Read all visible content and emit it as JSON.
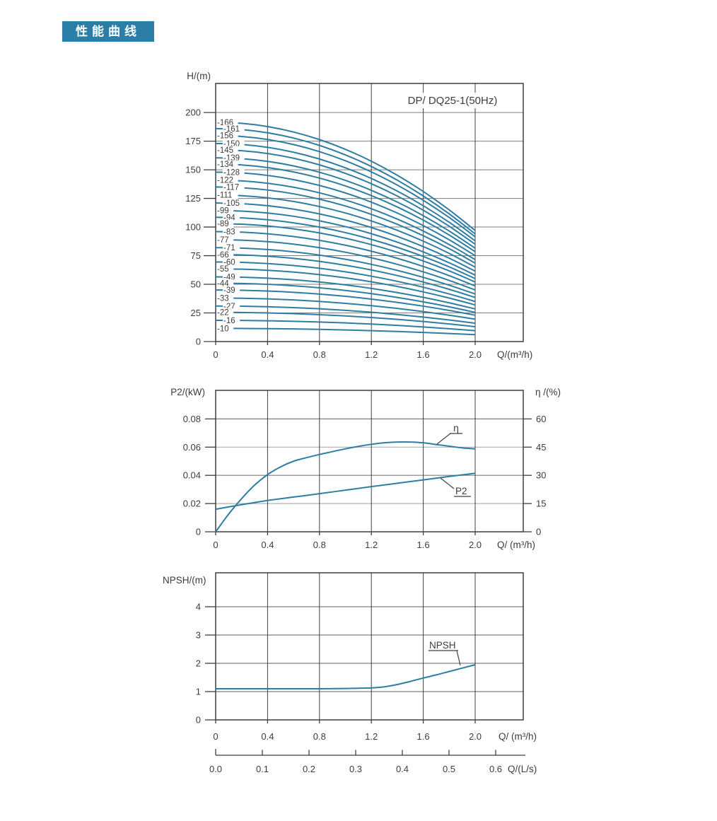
{
  "header": {
    "badge": "性能曲线"
  },
  "colors": {
    "accent": "#2b7ea8",
    "curve": "#2e7da2",
    "grid": "#7d7d7d",
    "grid_light": "#b0b0b0",
    "frame": "#3f3f3f",
    "text": "#3c3c3c"
  },
  "chart_data": [
    {
      "id": "head-flow",
      "type": "line",
      "title": "DP/ DQ25-1(50Hz)",
      "xlabel": "Q/(m³/h)",
      "ylabel": "H/(m)",
      "xticks": [
        0,
        0.4,
        0.8,
        1.2,
        1.6,
        2.0
      ],
      "xtick_labels": [
        "0",
        "0.4",
        "0.8",
        "1.2",
        "1.6",
        "2.0"
      ],
      "yticks": [
        0,
        25,
        50,
        75,
        100,
        125,
        150,
        175,
        200
      ],
      "xlim": [
        0,
        2.37
      ],
      "ylim": [
        0,
        225
      ],
      "model": "H(Q) = h0 - (h0 - h2)*(Q/2)^2, Q in m³/h, H in m",
      "series": [
        {
          "label": "-166",
          "h0": 191.5,
          "h2": 97
        },
        {
          "label": "-161",
          "h0": 186,
          "h2": 94
        },
        {
          "label": "-156",
          "h0": 180,
          "h2": 91.5
        },
        {
          "label": "-150",
          "h0": 173,
          "h2": 88
        },
        {
          "label": "-145",
          "h0": 167.5,
          "h2": 85
        },
        {
          "label": "-139",
          "h0": 160.5,
          "h2": 81.5
        },
        {
          "label": "-134",
          "h0": 155,
          "h2": 78.5
        },
        {
          "label": "-128",
          "h0": 148,
          "h2": 75
        },
        {
          "label": "-122",
          "h0": 141,
          "h2": 71.5
        },
        {
          "label": "-117",
          "h0": 135,
          "h2": 68.5
        },
        {
          "label": "-111",
          "h0": 128,
          "h2": 65
        },
        {
          "label": "-105",
          "h0": 121,
          "h2": 61.5
        },
        {
          "label": "-99",
          "h0": 114.5,
          "h2": 58
        },
        {
          "label": "-94",
          "h0": 108.5,
          "h2": 55
        },
        {
          "label": "-89",
          "h0": 103,
          "h2": 52
        },
        {
          "label": "-83",
          "h0": 96,
          "h2": 48.5
        },
        {
          "label": "-77",
          "h0": 89,
          "h2": 45
        },
        {
          "label": "-71",
          "h0": 82,
          "h2": 41.5
        },
        {
          "label": "-66",
          "h0": 76,
          "h2": 38.5
        },
        {
          "label": "-60",
          "h0": 69.5,
          "h2": 35
        },
        {
          "label": "-55",
          "h0": 63.5,
          "h2": 32
        },
        {
          "label": "-49",
          "h0": 56.5,
          "h2": 28.5
        },
        {
          "label": "-44",
          "h0": 51,
          "h2": 25.5
        },
        {
          "label": "-39",
          "h0": 45,
          "h2": 23
        },
        {
          "label": "-33",
          "h0": 38,
          "h2": 19.5
        },
        {
          "label": "-27",
          "h0": 31,
          "h2": 16
        },
        {
          "label": "-22",
          "h0": 25.5,
          "h2": 13
        },
        {
          "label": "-16",
          "h0": 18.5,
          "h2": 9.5
        },
        {
          "label": "-10",
          "h0": 11.5,
          "h2": 6
        }
      ]
    },
    {
      "id": "power-efficiency",
      "type": "line",
      "xlabel": "Q/ (m³/h)",
      "ylabel_left": "P2/(kW)",
      "ylabel_right": "η /(%)",
      "xticks": [
        0,
        0.4,
        0.8,
        1.2,
        1.6,
        2.0
      ],
      "xtick_labels": [
        "0",
        "0.4",
        "0.8",
        "1.2",
        "1.6",
        "2.0"
      ],
      "yticks_left": [
        "0.08",
        "0.06",
        "0.04",
        "0.02",
        "0"
      ],
      "yticks_right": [
        "60",
        "45",
        "30",
        "15",
        "0"
      ],
      "ylim_left": [
        0,
        0.1
      ],
      "ylim_right": [
        0,
        75
      ],
      "series": [
        {
          "name": "η",
          "axis": "right",
          "unit": "%",
          "points": [
            [
              0,
              0
            ],
            [
              0.1,
              9.4
            ],
            [
              0.2,
              17.6
            ],
            [
              0.3,
              24.8
            ],
            [
              0.4,
              30.4
            ],
            [
              0.5,
              34.5
            ],
            [
              0.6,
              37.5
            ],
            [
              0.7,
              39.4
            ],
            [
              0.8,
              41.1
            ],
            [
              0.9,
              42.6
            ],
            [
              1.0,
              44.1
            ],
            [
              1.1,
              45.4
            ],
            [
              1.2,
              46.5
            ],
            [
              1.3,
              47.3
            ],
            [
              1.4,
              47.7
            ],
            [
              1.5,
              47.7
            ],
            [
              1.6,
              47.3
            ],
            [
              1.7,
              46.4
            ],
            [
              1.8,
              45.5
            ],
            [
              1.9,
              44.6
            ],
            [
              2.0,
              44.1
            ]
          ]
        },
        {
          "name": "P2",
          "axis": "left",
          "unit": "kW",
          "points": [
            [
              0,
              0.016
            ],
            [
              0.2,
              0.0192
            ],
            [
              0.4,
              0.0222
            ],
            [
              0.6,
              0.0246
            ],
            [
              0.8,
              0.027
            ],
            [
              1.0,
              0.0295
            ],
            [
              1.2,
              0.032
            ],
            [
              1.4,
              0.0344
            ],
            [
              1.6,
              0.0368
            ],
            [
              1.8,
              0.0392
            ],
            [
              2.0,
              0.0415
            ]
          ]
        }
      ]
    },
    {
      "id": "npsh",
      "type": "line",
      "xlabel": "Q/ (m³/h)",
      "ylabel": "NPSH/(m)",
      "xticks": [
        0,
        0.4,
        0.8,
        1.2,
        1.6,
        2.0
      ],
      "xtick_labels": [
        "0",
        "0.4",
        "0.8",
        "1.2",
        "1.6",
        "2.0"
      ],
      "yticks": [
        0,
        1,
        2,
        3,
        4
      ],
      "ylim": [
        0,
        5.2
      ],
      "series": [
        {
          "name": "NPSH",
          "unit": "m",
          "points": [
            [
              0,
              1.1
            ],
            [
              0.2,
              1.1
            ],
            [
              0.4,
              1.1
            ],
            [
              0.6,
              1.1
            ],
            [
              0.8,
              1.1
            ],
            [
              1.0,
              1.11
            ],
            [
              1.1,
              1.12
            ],
            [
              1.2,
              1.13
            ],
            [
              1.3,
              1.17
            ],
            [
              1.4,
              1.25
            ],
            [
              1.5,
              1.36
            ],
            [
              1.6,
              1.48
            ],
            [
              1.7,
              1.59
            ],
            [
              1.8,
              1.71
            ],
            [
              1.9,
              1.83
            ],
            [
              2.0,
              1.95
            ]
          ]
        }
      ],
      "x2axis": {
        "label": "Q/(L/s)",
        "ticks": [
          0,
          0.1,
          0.2,
          0.3,
          0.4,
          0.5,
          0.6
        ],
        "tick_labels": [
          "0.0",
          "0.1",
          "0.2",
          "0.3",
          "0.4",
          "0.5",
          "0.6"
        ]
      }
    }
  ]
}
